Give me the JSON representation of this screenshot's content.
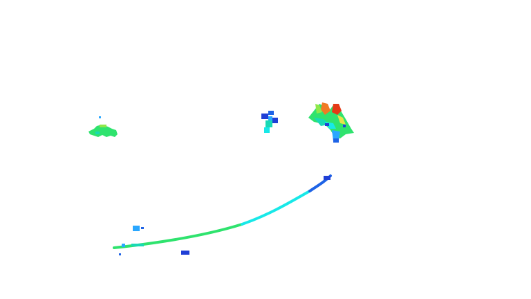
{
  "scene": {
    "background": "#ffffff",
    "palette": {
      "deep_blue": "#1f3fd6",
      "blue": "#1e63e6",
      "sky": "#2aa7ff",
      "cyan": "#18e8e8",
      "teal": "#19d9b5",
      "green": "#2fe36e",
      "lime": "#8fe84a",
      "yellow": "#e7e34a",
      "orange": "#f07a24",
      "red": "#e53a16"
    }
  }
}
